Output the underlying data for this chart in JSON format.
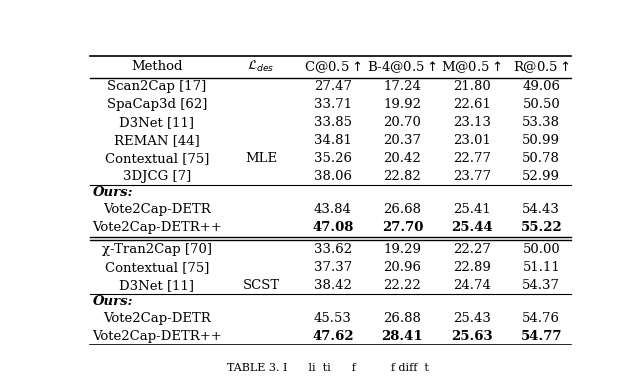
{
  "figsize": [
    6.4,
    3.88
  ],
  "dpi": 100,
  "background": "#ffffff",
  "rows": [
    {
      "method": "Scan2Cap [17]",
      "loss": "",
      "c": "27.47",
      "b": "17.24",
      "m": "21.80",
      "r": "49.06",
      "bold": false,
      "ours_header": false
    },
    {
      "method": "SpaCap3d [62]",
      "loss": "",
      "c": "33.71",
      "b": "19.92",
      "m": "22.61",
      "r": "50.50",
      "bold": false,
      "ours_header": false
    },
    {
      "method": "D3Net [11]",
      "loss": "",
      "c": "33.85",
      "b": "20.70",
      "m": "23.13",
      "r": "53.38",
      "bold": false,
      "ours_header": false
    },
    {
      "method": "REMAN [44]",
      "loss": "",
      "c": "34.81",
      "b": "20.37",
      "m": "23.01",
      "r": "50.99",
      "bold": false,
      "ours_header": false
    },
    {
      "method": "Contextual [75]",
      "loss": "MLE",
      "c": "35.26",
      "b": "20.42",
      "m": "22.77",
      "r": "50.78",
      "bold": false,
      "ours_header": false
    },
    {
      "method": "3DJCG [7]",
      "loss": "",
      "c": "38.06",
      "b": "22.82",
      "m": "23.77",
      "r": "52.99",
      "bold": false,
      "ours_header": false
    },
    {
      "method": "OURS_HEADER",
      "loss": "",
      "c": "",
      "b": "",
      "m": "",
      "r": "",
      "bold": false,
      "ours_header": true,
      "sep_before": true
    },
    {
      "method": "Vote2Cap-DETR",
      "loss": "",
      "c": "43.84",
      "b": "26.68",
      "m": "25.41",
      "r": "54.43",
      "bold": false,
      "ours_header": false
    },
    {
      "method": "Vote2Cap-DETR++",
      "loss": "",
      "c": "47.08",
      "b": "27.70",
      "m": "25.44",
      "r": "55.22",
      "bold": true,
      "ours_header": false,
      "sep_after_double": true
    },
    {
      "method": "χ-Tran2Cap [70]",
      "loss": "",
      "c": "33.62",
      "b": "19.29",
      "m": "22.27",
      "r": "50.00",
      "bold": false,
      "ours_header": false
    },
    {
      "method": "Contextual [75]",
      "loss": "",
      "c": "37.37",
      "b": "20.96",
      "m": "22.89",
      "r": "51.11",
      "bold": false,
      "ours_header": false
    },
    {
      "method": "D3Net [11]",
      "loss": "SCST",
      "c": "38.42",
      "b": "22.22",
      "m": "24.74",
      "r": "54.37",
      "bold": false,
      "ours_header": false
    },
    {
      "method": "OURS_HEADER",
      "loss": "",
      "c": "",
      "b": "",
      "m": "",
      "r": "",
      "bold": false,
      "ours_header": true,
      "sep_before": true
    },
    {
      "method": "Vote2Cap-DETR",
      "loss": "",
      "c": "45.53",
      "b": "26.88",
      "m": "25.43",
      "r": "54.76",
      "bold": false,
      "ours_header": false
    },
    {
      "method": "Vote2Cap-DETR++",
      "loss": "",
      "c": "47.62",
      "b": "28.41",
      "m": "25.63",
      "r": "54.77",
      "bold": true,
      "ours_header": false
    }
  ],
  "col_headers": [
    "Method",
    "L_des",
    "C@0.5↑",
    "B-4@0.5↑",
    "M@0.5↑",
    "R@0.5↑"
  ],
  "caption": "TABLE 3. I   li  ti      f          f diff  t",
  "fontsize": 9.5,
  "header_fontsize": 9.5,
  "caption_fontsize": 8.0,
  "font_family": "DejaVu Serif"
}
